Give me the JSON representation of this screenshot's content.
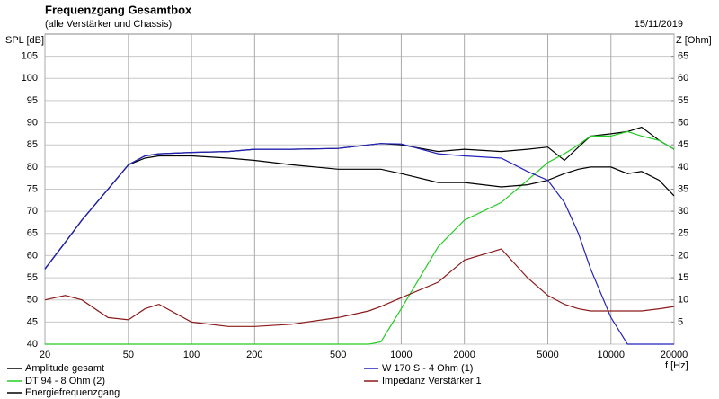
{
  "chart_data": {
    "type": "line",
    "title": "Frequenzgang Gesamtbox",
    "subtitle": "(alle Verstärker und Chassis)",
    "date": "15/11/2019",
    "y_label": "SPL [dB]",
    "y2_label": "Z [Ohm]",
    "x_label": "f [Hz]",
    "log_x": true,
    "grid": true,
    "x": [
      20,
      25,
      30,
      40,
      50,
      60,
      70,
      100,
      150,
      200,
      300,
      500,
      700,
      800,
      1000,
      1500,
      2000,
      3000,
      4000,
      5000,
      6000,
      7000,
      8000,
      10000,
      12000,
      14000,
      17000,
      20000
    ],
    "xlim": [
      20,
      20000
    ],
    "xticks": [
      20,
      50,
      100,
      200,
      500,
      1000,
      2000,
      5000,
      10000,
      20000
    ],
    "ylim": [
      40,
      110
    ],
    "yticks": [
      40,
      45,
      50,
      55,
      60,
      65,
      70,
      75,
      80,
      85,
      90,
      95,
      100,
      105
    ],
    "y2lim": [
      0,
      70
    ],
    "y2ticks": [
      5,
      10,
      15,
      20,
      25,
      30,
      35,
      40,
      45,
      50,
      55,
      60,
      65
    ],
    "series": [
      {
        "name": "Amplitude gesamt",
        "color": "#000000",
        "values": [
          57,
          63,
          68,
          75,
          80.5,
          82.5,
          83,
          83.3,
          83.5,
          84,
          84,
          84.2,
          85,
          85.3,
          85,
          83.5,
          84,
          83.5,
          84,
          84.5,
          81.5,
          84.5,
          87,
          87.5,
          88,
          89,
          86,
          84
        ]
      },
      {
        "name": "DT 94 - 8 Ohm (2)",
        "color": "#22cc22",
        "values": [
          40,
          40,
          40,
          40,
          40,
          40,
          40,
          40,
          40,
          40,
          40,
          40,
          40,
          40.5,
          48,
          62,
          68,
          72,
          77,
          81,
          83,
          85,
          87,
          87,
          88,
          87,
          86,
          84
        ]
      },
      {
        "name": "Energiefrequenzgang",
        "color": "#000000",
        "values": [
          57,
          63,
          68,
          75,
          80.5,
          82,
          82.5,
          82.5,
          82,
          81.5,
          80.5,
          79.5,
          79.5,
          79.5,
          78.5,
          76.5,
          76.5,
          75.5,
          76,
          77,
          78.5,
          79.5,
          80,
          80,
          78.5,
          79,
          77,
          73.5
        ]
      },
      {
        "name": "W 170 S - 4 Ohm (1)",
        "color": "#2222bb",
        "values": [
          57,
          63,
          68,
          75,
          80.5,
          82.5,
          83,
          83.3,
          83.5,
          84,
          84,
          84.2,
          85,
          85.3,
          85.2,
          83,
          82.5,
          82,
          79,
          77,
          72,
          65,
          57,
          46,
          40,
          40,
          40,
          40
        ]
      },
      {
        "name": "Impedanz Verstärker 1",
        "color": "#8b1a1a",
        "axis": "y2",
        "values": [
          10,
          11,
          10,
          6,
          5.5,
          8,
          9,
          5,
          4,
          4,
          4.5,
          6,
          7.5,
          8.5,
          10.5,
          14,
          19,
          21.5,
          15,
          11,
          9,
          8,
          7.5,
          7.5,
          7.5,
          7.5,
          8,
          8.5
        ]
      }
    ]
  }
}
